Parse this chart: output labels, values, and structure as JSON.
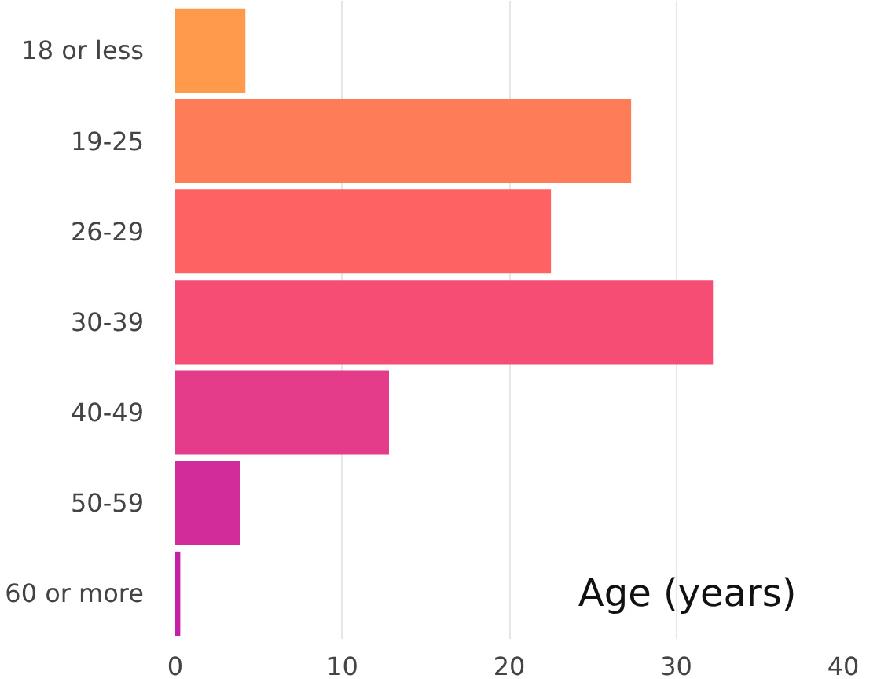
{
  "chart_data": {
    "type": "bar",
    "orientation": "horizontal",
    "categories": [
      "18 or less",
      "19-25",
      "26-29",
      "30-39",
      "40-49",
      "50-59",
      "60 or more"
    ],
    "values": [
      4.2,
      27.3,
      22.5,
      32.2,
      12.8,
      3.9,
      0.3
    ],
    "colors": [
      "#ff9a4d",
      "#ff7c58",
      "#ff6262",
      "#f64d74",
      "#e43c8a",
      "#d22b9a",
      "#c51fa6"
    ],
    "xlim": [
      0,
      40
    ],
    "xticks": [
      0,
      10,
      20,
      30,
      40
    ],
    "grid": "x",
    "annotations": [
      "Age (years)"
    ]
  }
}
